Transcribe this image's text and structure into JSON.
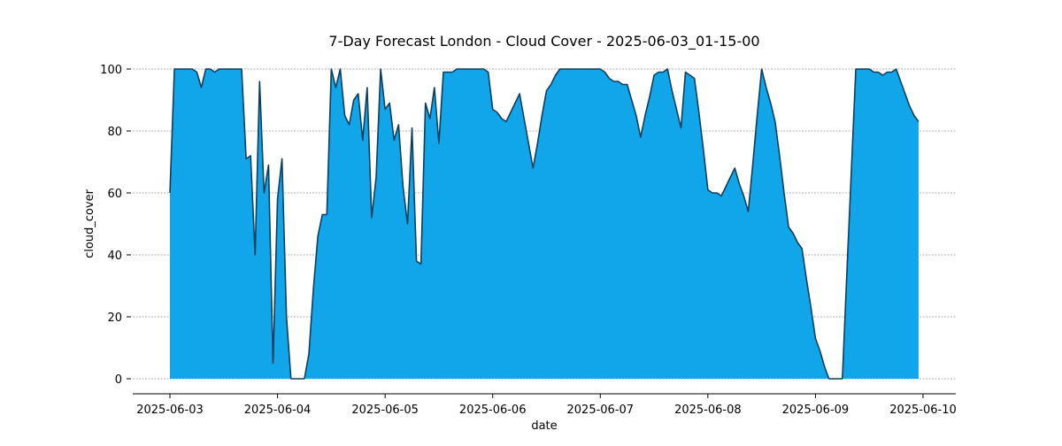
{
  "chart_data": {
    "type": "area",
    "title": "7-Day Forecast London - Cloud Cover - 2025-06-03_01-15-00",
    "xlabel": "date",
    "ylabel": "cloud_cover",
    "xlim": [
      "2025-06-03",
      "2025-06-10"
    ],
    "ylim": [
      0,
      100
    ],
    "x_ticks": [
      "2025-06-03",
      "2025-06-04",
      "2025-06-05",
      "2025-06-06",
      "2025-06-07",
      "2025-06-08",
      "2025-06-09",
      "2025-06-10"
    ],
    "y_ticks": [
      0,
      20,
      40,
      60,
      80,
      100
    ],
    "grid": "horizontal dashed",
    "fill_color": "#11a5e9",
    "line_color": "#0b3f5f",
    "grid_color": "#999999",
    "series": [
      {
        "points": [
          [
            "2025-06-03T00:00",
            60
          ],
          [
            "2025-06-03T01:00",
            100
          ],
          [
            "2025-06-03T02:00",
            100
          ],
          [
            "2025-06-03T03:00",
            100
          ],
          [
            "2025-06-03T04:00",
            100
          ],
          [
            "2025-06-03T05:00",
            100
          ],
          [
            "2025-06-03T06:00",
            99
          ],
          [
            "2025-06-03T07:00",
            94
          ],
          [
            "2025-06-03T08:00",
            100
          ],
          [
            "2025-06-03T09:00",
            100
          ],
          [
            "2025-06-03T10:00",
            99
          ],
          [
            "2025-06-03T11:00",
            100
          ],
          [
            "2025-06-03T12:00",
            100
          ],
          [
            "2025-06-03T13:00",
            100
          ],
          [
            "2025-06-03T14:00",
            100
          ],
          [
            "2025-06-03T15:00",
            100
          ],
          [
            "2025-06-03T16:00",
            100
          ],
          [
            "2025-06-03T17:00",
            71
          ],
          [
            "2025-06-03T18:00",
            72
          ],
          [
            "2025-06-03T19:00",
            40
          ],
          [
            "2025-06-03T20:00",
            96
          ],
          [
            "2025-06-03T21:00",
            60
          ],
          [
            "2025-06-03T22:00",
            69
          ],
          [
            "2025-06-03T23:00",
            5
          ],
          [
            "2025-06-04T00:00",
            58
          ],
          [
            "2025-06-04T01:00",
            71
          ],
          [
            "2025-06-04T02:00",
            20
          ],
          [
            "2025-06-04T03:00",
            0
          ],
          [
            "2025-06-04T04:00",
            0
          ],
          [
            "2025-06-04T05:00",
            0
          ],
          [
            "2025-06-04T06:00",
            0
          ],
          [
            "2025-06-04T07:00",
            8
          ],
          [
            "2025-06-04T08:00",
            29
          ],
          [
            "2025-06-04T09:00",
            46
          ],
          [
            "2025-06-04T10:00",
            53
          ],
          [
            "2025-06-04T11:00",
            53
          ],
          [
            "2025-06-04T12:00",
            100
          ],
          [
            "2025-06-04T13:00",
            94
          ],
          [
            "2025-06-04T14:00",
            100
          ],
          [
            "2025-06-04T15:00",
            85
          ],
          [
            "2025-06-04T16:00",
            82
          ],
          [
            "2025-06-04T17:00",
            90
          ],
          [
            "2025-06-04T18:00",
            92
          ],
          [
            "2025-06-04T19:00",
            77
          ],
          [
            "2025-06-04T20:00",
            94
          ],
          [
            "2025-06-04T21:00",
            52
          ],
          [
            "2025-06-04T22:00",
            65
          ],
          [
            "2025-06-04T23:00",
            100
          ],
          [
            "2025-06-05T00:00",
            87
          ],
          [
            "2025-06-05T01:00",
            89
          ],
          [
            "2025-06-05T02:00",
            77
          ],
          [
            "2025-06-05T03:00",
            82
          ],
          [
            "2025-06-05T04:00",
            62
          ],
          [
            "2025-06-05T05:00",
            50
          ],
          [
            "2025-06-05T06:00",
            81
          ],
          [
            "2025-06-05T07:00",
            38
          ],
          [
            "2025-06-05T08:00",
            37
          ],
          [
            "2025-06-05T09:00",
            89
          ],
          [
            "2025-06-05T10:00",
            84
          ],
          [
            "2025-06-05T11:00",
            94
          ],
          [
            "2025-06-05T12:00",
            76
          ],
          [
            "2025-06-05T13:00",
            99
          ],
          [
            "2025-06-05T14:00",
            99
          ],
          [
            "2025-06-05T15:00",
            99
          ],
          [
            "2025-06-05T16:00",
            100
          ],
          [
            "2025-06-05T17:00",
            100
          ],
          [
            "2025-06-05T18:00",
            100
          ],
          [
            "2025-06-05T19:00",
            100
          ],
          [
            "2025-06-05T20:00",
            100
          ],
          [
            "2025-06-05T21:00",
            100
          ],
          [
            "2025-06-05T22:00",
            100
          ],
          [
            "2025-06-05T23:00",
            99
          ],
          [
            "2025-06-06T00:00",
            87
          ],
          [
            "2025-06-06T01:00",
            86
          ],
          [
            "2025-06-06T02:00",
            84
          ],
          [
            "2025-06-06T03:00",
            83
          ],
          [
            "2025-06-06T04:00",
            86
          ],
          [
            "2025-06-06T05:00",
            89
          ],
          [
            "2025-06-06T06:00",
            92
          ],
          [
            "2025-06-06T07:00",
            84
          ],
          [
            "2025-06-06T08:00",
            76
          ],
          [
            "2025-06-06T09:00",
            68
          ],
          [
            "2025-06-06T10:00",
            76
          ],
          [
            "2025-06-06T11:00",
            85
          ],
          [
            "2025-06-06T12:00",
            93
          ],
          [
            "2025-06-06T13:00",
            95
          ],
          [
            "2025-06-06T14:00",
            98
          ],
          [
            "2025-06-06T15:00",
            100
          ],
          [
            "2025-06-06T16:00",
            100
          ],
          [
            "2025-06-06T17:00",
            100
          ],
          [
            "2025-06-06T18:00",
            100
          ],
          [
            "2025-06-06T19:00",
            100
          ],
          [
            "2025-06-06T20:00",
            100
          ],
          [
            "2025-06-06T21:00",
            100
          ],
          [
            "2025-06-06T22:00",
            100
          ],
          [
            "2025-06-06T23:00",
            100
          ],
          [
            "2025-06-07T00:00",
            100
          ],
          [
            "2025-06-07T01:00",
            99
          ],
          [
            "2025-06-07T02:00",
            97
          ],
          [
            "2025-06-07T03:00",
            96
          ],
          [
            "2025-06-07T04:00",
            96
          ],
          [
            "2025-06-07T05:00",
            95
          ],
          [
            "2025-06-07T06:00",
            95
          ],
          [
            "2025-06-07T07:00",
            90
          ],
          [
            "2025-06-07T08:00",
            85
          ],
          [
            "2025-06-07T09:00",
            78
          ],
          [
            "2025-06-07T10:00",
            85
          ],
          [
            "2025-06-07T11:00",
            91
          ],
          [
            "2025-06-07T12:00",
            98
          ],
          [
            "2025-06-07T13:00",
            99
          ],
          [
            "2025-06-07T14:00",
            99
          ],
          [
            "2025-06-07T15:00",
            100
          ],
          [
            "2025-06-07T16:00",
            93
          ],
          [
            "2025-06-07T17:00",
            87
          ],
          [
            "2025-06-07T18:00",
            81
          ],
          [
            "2025-06-07T19:00",
            99
          ],
          [
            "2025-06-07T20:00",
            98
          ],
          [
            "2025-06-07T21:00",
            97
          ],
          [
            "2025-06-07T22:00",
            86
          ],
          [
            "2025-06-07T23:00",
            74
          ],
          [
            "2025-06-08T00:00",
            61
          ],
          [
            "2025-06-08T01:00",
            60
          ],
          [
            "2025-06-08T02:00",
            60
          ],
          [
            "2025-06-08T03:00",
            59
          ],
          [
            "2025-06-08T04:00",
            62
          ],
          [
            "2025-06-08T05:00",
            65
          ],
          [
            "2025-06-08T06:00",
            68
          ],
          [
            "2025-06-08T07:00",
            63
          ],
          [
            "2025-06-08T08:00",
            59
          ],
          [
            "2025-06-08T09:00",
            54
          ],
          [
            "2025-06-08T10:00",
            69
          ],
          [
            "2025-06-08T11:00",
            85
          ],
          [
            "2025-06-08T12:00",
            100
          ],
          [
            "2025-06-08T13:00",
            94
          ],
          [
            "2025-06-08T14:00",
            89
          ],
          [
            "2025-06-08T15:00",
            83
          ],
          [
            "2025-06-08T16:00",
            72
          ],
          [
            "2025-06-08T17:00",
            60
          ],
          [
            "2025-06-08T18:00",
            49
          ],
          [
            "2025-06-08T19:00",
            47
          ],
          [
            "2025-06-08T20:00",
            44
          ],
          [
            "2025-06-08T21:00",
            42
          ],
          [
            "2025-06-08T22:00",
            32
          ],
          [
            "2025-06-08T23:00",
            23
          ],
          [
            "2025-06-09T00:00",
            13
          ],
          [
            "2025-06-09T01:00",
            9
          ],
          [
            "2025-06-09T02:00",
            4
          ],
          [
            "2025-06-09T03:00",
            0
          ],
          [
            "2025-06-09T04:00",
            0
          ],
          [
            "2025-06-09T05:00",
            0
          ],
          [
            "2025-06-09T06:00",
            0
          ],
          [
            "2025-06-09T07:00",
            34
          ],
          [
            "2025-06-09T08:00",
            67
          ],
          [
            "2025-06-09T09:00",
            100
          ],
          [
            "2025-06-09T10:00",
            100
          ],
          [
            "2025-06-09T11:00",
            100
          ],
          [
            "2025-06-09T12:00",
            100
          ],
          [
            "2025-06-09T13:00",
            99
          ],
          [
            "2025-06-09T14:00",
            99
          ],
          [
            "2025-06-09T15:00",
            98
          ],
          [
            "2025-06-09T16:00",
            99
          ],
          [
            "2025-06-09T17:00",
            99
          ],
          [
            "2025-06-09T18:00",
            100
          ],
          [
            "2025-06-09T19:00",
            96
          ],
          [
            "2025-06-09T20:00",
            92
          ],
          [
            "2025-06-09T21:00",
            88
          ],
          [
            "2025-06-09T22:00",
            85
          ],
          [
            "2025-06-09T23:00",
            83
          ]
        ]
      }
    ]
  }
}
